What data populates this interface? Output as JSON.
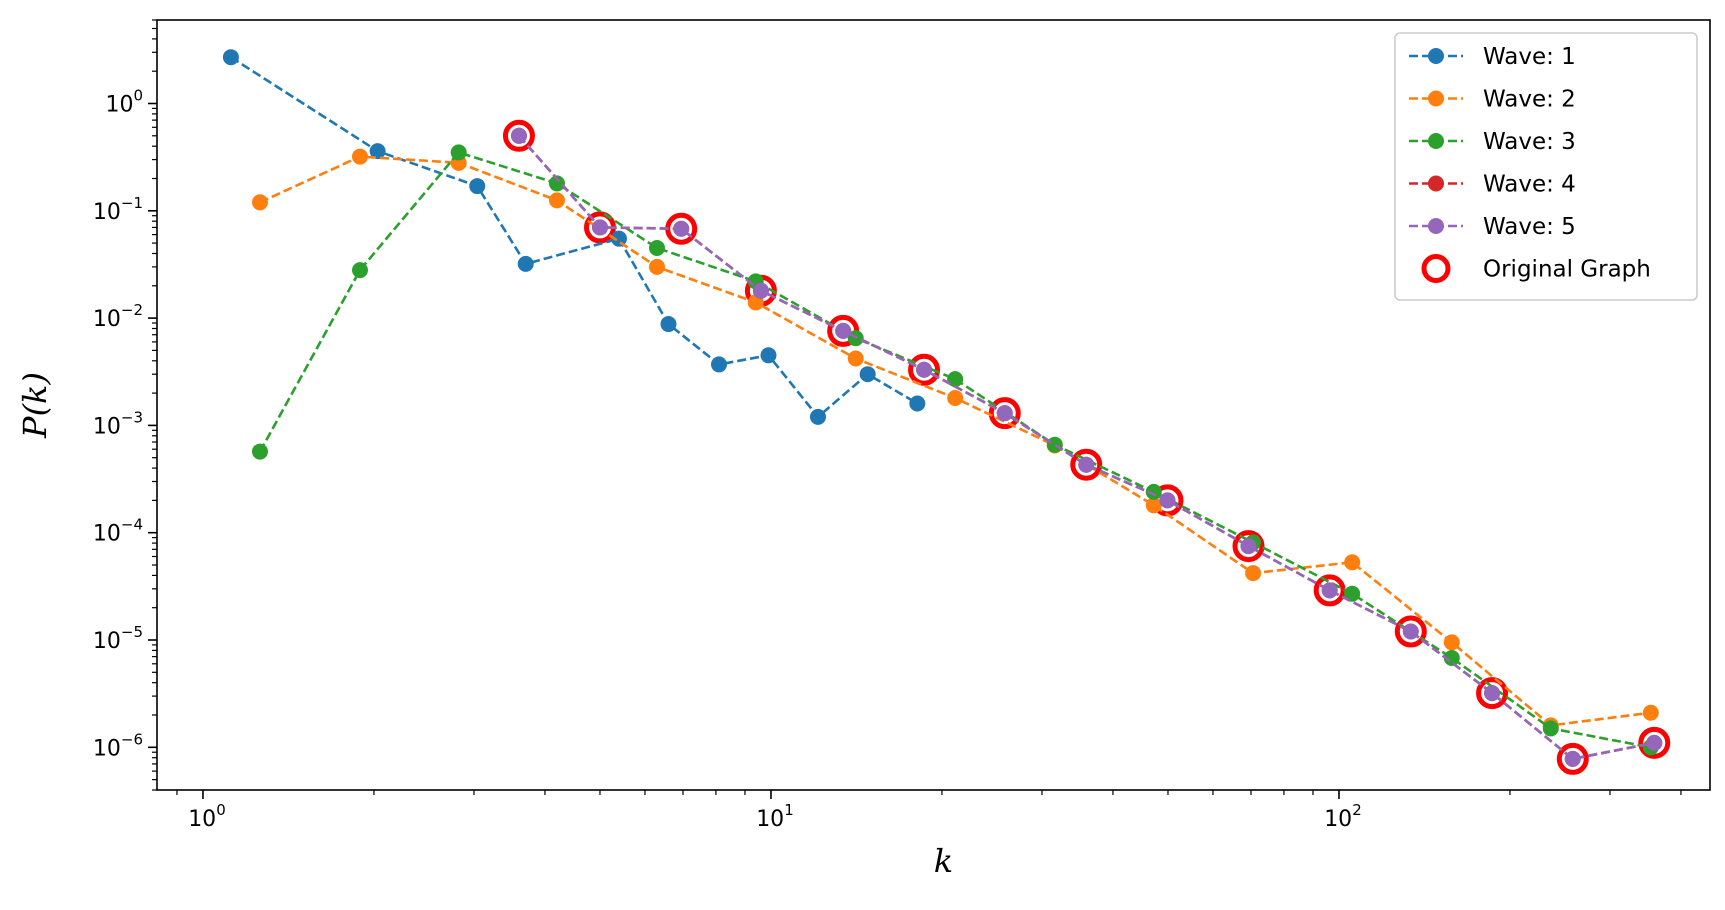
{
  "chart_data": {
    "type": "line",
    "scale": "log-log",
    "xlabel": "k",
    "ylabel_prefix": "P(",
    "ylabel_var": "k",
    "ylabel_suffix": ")",
    "xlim": [
      0.83,
      450
    ],
    "ylim": [
      4e-07,
      6
    ],
    "x_ticks": [
      {
        "value": 1,
        "base": "10",
        "exp": "0"
      },
      {
        "value": 10,
        "base": "10",
        "exp": "1"
      },
      {
        "value": 100,
        "base": "10",
        "exp": "2"
      }
    ],
    "y_ticks": [
      {
        "value": 1,
        "base": "10",
        "exp": "0"
      },
      {
        "value": 0.1,
        "base": "10",
        "exp": "−1"
      },
      {
        "value": 0.01,
        "base": "10",
        "exp": "−2"
      },
      {
        "value": 0.001,
        "base": "10",
        "exp": "−3"
      },
      {
        "value": 0.0001,
        "base": "10",
        "exp": "−4"
      },
      {
        "value": 1e-05,
        "base": "10",
        "exp": "−5"
      },
      {
        "value": 1e-06,
        "base": "10",
        "exp": "−6"
      }
    ],
    "legend_position": "top-right",
    "series": [
      {
        "name": "Wave: 1",
        "color": "#1f77b4",
        "x": [
          1.12,
          2.03,
          3.04,
          3.7,
          5.4,
          6.6,
          8.1,
          9.9,
          12.1,
          14.8,
          18.1
        ],
        "y": [
          2.7,
          0.36,
          0.17,
          0.032,
          0.055,
          0.0088,
          0.0037,
          0.0045,
          0.0012,
          0.003,
          0.0016
        ]
      },
      {
        "name": "Wave: 2",
        "color": "#ff7f0e",
        "x": [
          1.26,
          1.89,
          2.82,
          4.2,
          6.3,
          9.4,
          14.1,
          21.1,
          31.6,
          47.2,
          70.6,
          105.5,
          158,
          236,
          354
        ],
        "y": [
          0.12,
          0.32,
          0.28,
          0.125,
          0.03,
          0.014,
          0.0042,
          0.0018,
          0.00065,
          0.00018,
          4.2e-05,
          5.3e-05,
          9.5e-06,
          1.6e-06,
          2.1e-06
        ]
      },
      {
        "name": "Wave: 3",
        "color": "#2ca02c",
        "x": [
          1.26,
          1.89,
          2.82,
          4.2,
          6.3,
          9.4,
          14.1,
          21.1,
          31.6,
          47.2,
          70.6,
          105.5,
          158,
          236,
          354
        ],
        "y": [
          0.00057,
          0.028,
          0.35,
          0.18,
          0.045,
          0.022,
          0.0065,
          0.0027,
          0.00066,
          0.00024,
          8.1e-05,
          2.7e-05,
          6.8e-06,
          1.5e-06,
          1e-06
        ]
      },
      {
        "name": "Wave: 4",
        "color": "#d62728",
        "x": [
          3.6,
          5.0,
          6.95,
          9.6,
          13.4,
          18.6,
          25.8,
          35.9,
          49.9,
          69.3,
          96.3,
          133.8,
          186,
          258,
          359
        ],
        "y": [
          0.5,
          0.07,
          0.068,
          0.018,
          0.0076,
          0.0033,
          0.0013,
          0.00043,
          0.0002,
          7.5e-05,
          2.9e-05,
          1.2e-05,
          3.2e-06,
          7.8e-07,
          1.1e-06
        ]
      },
      {
        "name": "Wave: 5",
        "color": "#9467bd",
        "x": [
          3.6,
          5.0,
          6.95,
          9.6,
          13.4,
          18.6,
          25.8,
          35.9,
          49.9,
          69.3,
          96.3,
          133.8,
          186,
          258,
          359
        ],
        "y": [
          0.5,
          0.07,
          0.068,
          0.018,
          0.0076,
          0.0033,
          0.0013,
          0.00043,
          0.0002,
          7.5e-05,
          2.9e-05,
          1.2e-05,
          3.2e-06,
          7.8e-07,
          1.1e-06
        ]
      }
    ],
    "original_graph": {
      "name": "Original Graph",
      "color": "#ff0000",
      "x": [
        3.6,
        5.0,
        6.95,
        9.6,
        13.4,
        18.6,
        25.8,
        35.9,
        49.9,
        69.3,
        96.3,
        133.8,
        186,
        258,
        359
      ],
      "y": [
        0.5,
        0.07,
        0.068,
        0.018,
        0.0076,
        0.0033,
        0.0013,
        0.00043,
        0.0002,
        7.5e-05,
        2.9e-05,
        1.2e-05,
        3.2e-06,
        7.8e-07,
        1.1e-06
      ]
    }
  }
}
